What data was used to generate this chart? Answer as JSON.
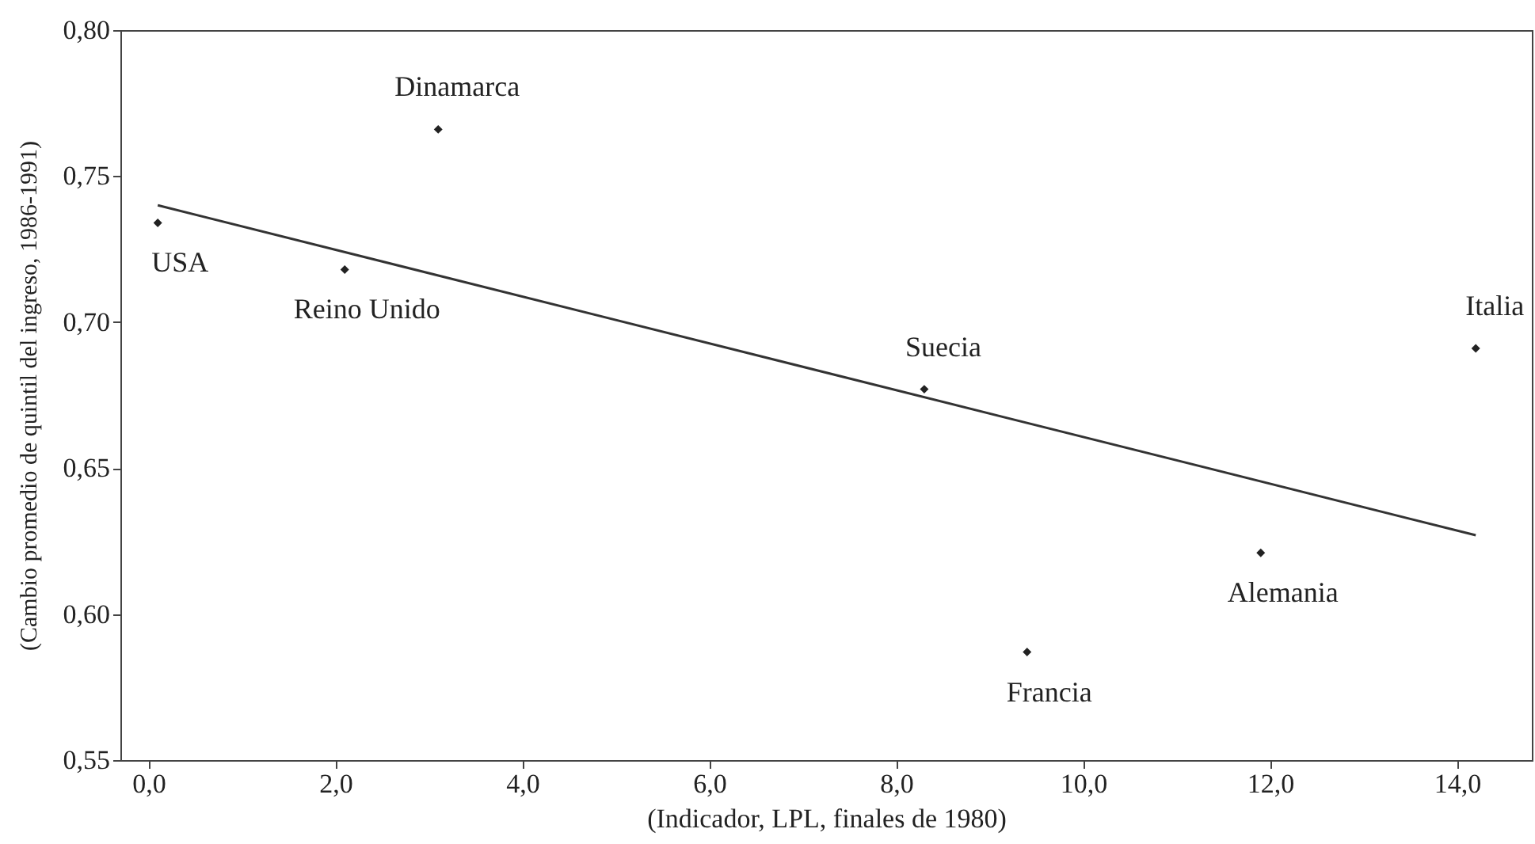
{
  "chart_data": {
    "type": "scatter",
    "xlabel": "(Indicador, LPL, finales de 1980)",
    "ylabel": "(Cambio promedio de quintil del ingreso, 1986-1991)",
    "xlim": [
      -0.3,
      14.8
    ],
    "ylim": [
      0.55,
      0.8
    ],
    "xticks": [
      {
        "value": 0,
        "label": "0,0"
      },
      {
        "value": 2,
        "label": "2,0"
      },
      {
        "value": 4,
        "label": "4,0"
      },
      {
        "value": 6,
        "label": "6,0"
      },
      {
        "value": 8,
        "label": "8,0"
      },
      {
        "value": 10,
        "label": "10,0"
      },
      {
        "value": 12,
        "label": "12,0"
      },
      {
        "value": 14,
        "label": "14,0"
      }
    ],
    "yticks": [
      {
        "value": 0.55,
        "label": "0,55"
      },
      {
        "value": 0.6,
        "label": "0,60"
      },
      {
        "value": 0.65,
        "label": "0,65"
      },
      {
        "value": 0.7,
        "label": "0,70"
      },
      {
        "value": 0.75,
        "label": "0,75"
      },
      {
        "value": 0.8,
        "label": "0,80"
      }
    ],
    "grid": false,
    "series": [
      {
        "color": "#222222",
        "marker": "diamond",
        "x": [
          0.1,
          2.1,
          3.1,
          8.3,
          9.4,
          11.9,
          14.2
        ],
        "values": [
          0.734,
          0.718,
          0.766,
          0.677,
          0.587,
          0.621,
          0.691
        ]
      },
      {
        "type": "line",
        "color": "#333333",
        "x": [
          0.1,
          14.2
        ],
        "values": [
          0.74,
          0.627
        ]
      }
    ],
    "annotations": [
      {
        "text": "Dinamarca",
        "x": 3.1,
        "y": 0.766
      },
      {
        "text": "USA",
        "x": 0.1,
        "y": 0.734
      },
      {
        "text": "Reino Unido",
        "x": 2.1,
        "y": 0.718
      },
      {
        "text": "Suecia",
        "x": 8.3,
        "y": 0.677
      },
      {
        "text": "Italia",
        "x": 14.2,
        "y": 0.691
      },
      {
        "text": "Alemania",
        "x": 11.9,
        "y": 0.621
      },
      {
        "text": "Francia",
        "x": 9.4,
        "y": 0.587
      }
    ]
  }
}
